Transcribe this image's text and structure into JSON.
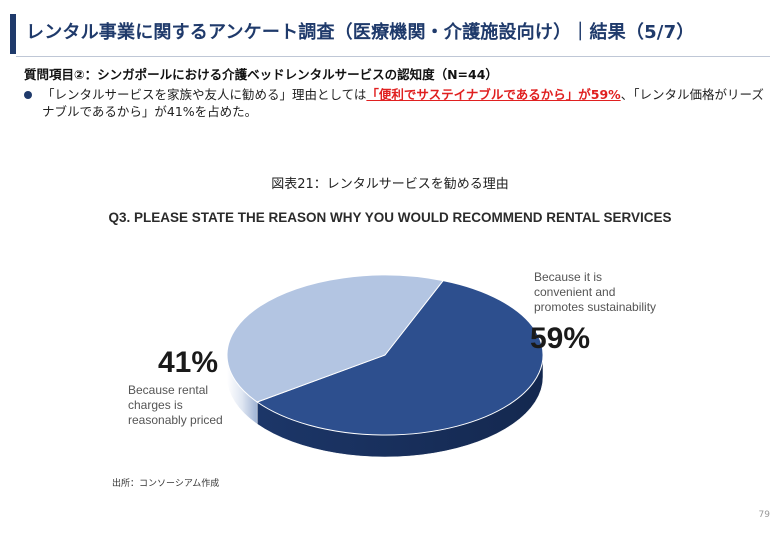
{
  "header": {
    "title": "レンタル事業に関するアンケート調査（医療機関・介護施設向け）｜結果（5/7）"
  },
  "question": "質問項目②：シンガポールにおける介護ベッドレンタルサービスの認知度（N=44）",
  "bullet": {
    "before": "「レンタルサービスを家族や友人に勧める」理由としては",
    "highlight": "「便利でサステイナブルであるから」が59%",
    "after": "、「レンタル価格がリーズナブルであるから」が41%を占めた。"
  },
  "figure_caption": "図表21：レンタルサービスを勧める理由",
  "chart_data": {
    "type": "pie",
    "title": "Q3. PLEASE STATE THE REASON WHY YOU WOULD RECOMMEND RENTAL SERVICES",
    "slices": [
      {
        "label_lines": [
          "Because it is",
          "convenient and",
          "promotes sustainability"
        ],
        "value": 59,
        "value_label": "59%",
        "color": "#2d4f8e"
      },
      {
        "label_lines": [
          "Because rental",
          "charges is",
          "reasonably priced"
        ],
        "value": 41,
        "value_label": "41%",
        "color": "#b3c5e2"
      }
    ]
  },
  "source": "出所：コンソーシアム作成",
  "page_number": "79"
}
